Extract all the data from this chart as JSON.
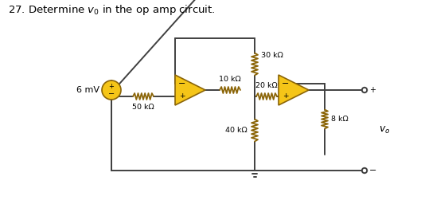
{
  "title": "27. Determine $v_0$ in the op amp circuit.",
  "bg_color": "#ffffff",
  "wire_color": "#404040",
  "resistor_color": "#8B6508",
  "opamp_fill": "#f5c518",
  "opamp_edge": "#8B6508",
  "label_color": "#000000",
  "source_fill": "#f5c518",
  "labels": {
    "R1": "50 kΩ",
    "R2": "10 kΩ",
    "R3": "30 kΩ",
    "R4": "20 kΩ",
    "R5": "40 kΩ",
    "R6": "8 kΩ",
    "Vs": "6 mV",
    "Vo": "$v_o$"
  }
}
